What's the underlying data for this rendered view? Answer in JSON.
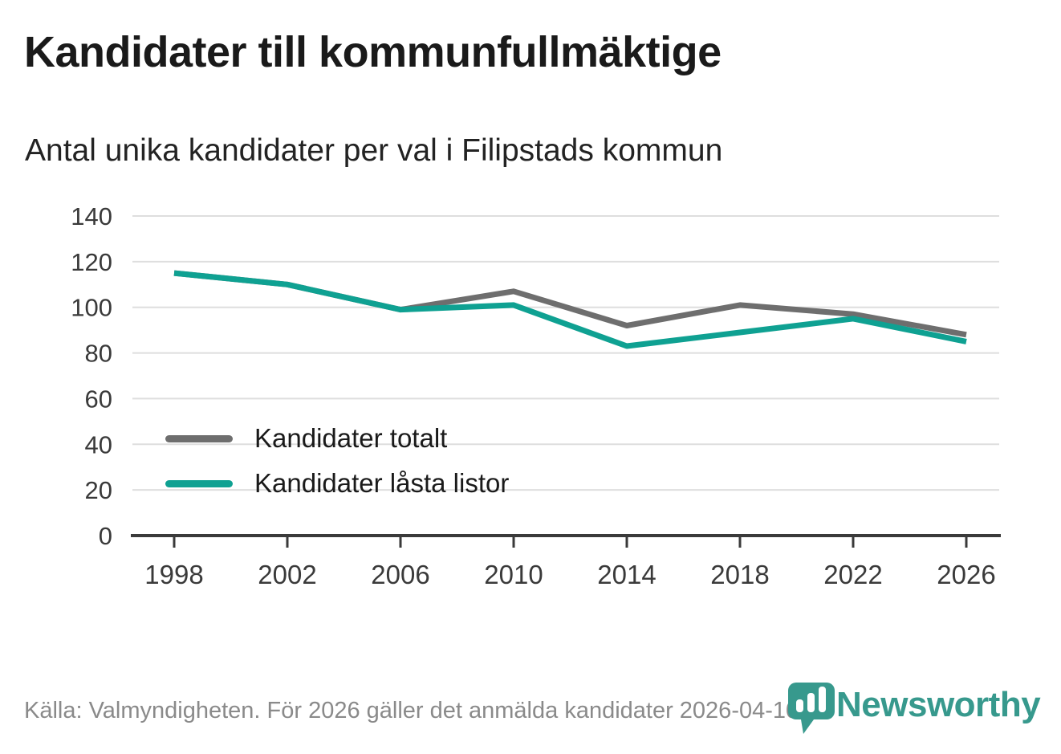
{
  "header": {
    "title": "Kandidater till kommunfullmäktige",
    "subtitle": "Antal unika kandidater per val i Filipstads kommun"
  },
  "chart_data": {
    "type": "line",
    "x": [
      1998,
      2002,
      2006,
      2010,
      2014,
      2018,
      2022,
      2026
    ],
    "series": [
      {
        "name": "Kandidater totalt",
        "color": "#6E6E6E",
        "values": [
          115,
          110,
          99,
          107,
          92,
          101,
          97,
          88
        ]
      },
      {
        "name": "Kandidater låsta listor",
        "color": "#0FA192",
        "values": [
          115,
          110,
          99,
          101,
          83,
          89,
          95,
          85
        ]
      }
    ],
    "ylim": [
      0,
      140
    ],
    "yticks": [
      0,
      20,
      40,
      60,
      80,
      100,
      120,
      140
    ],
    "grid": true,
    "legend_position": "inside-left-middle",
    "xlabel": "",
    "ylabel": ""
  },
  "footer": {
    "source": "Källa: Valmyndigheten. För 2026 gäller det anmälda kandidater 2026-04-10."
  },
  "logo": {
    "brand": "Newsworthy",
    "color": "#37998D",
    "icon": "newsworthy-pin-barchart-icon"
  }
}
